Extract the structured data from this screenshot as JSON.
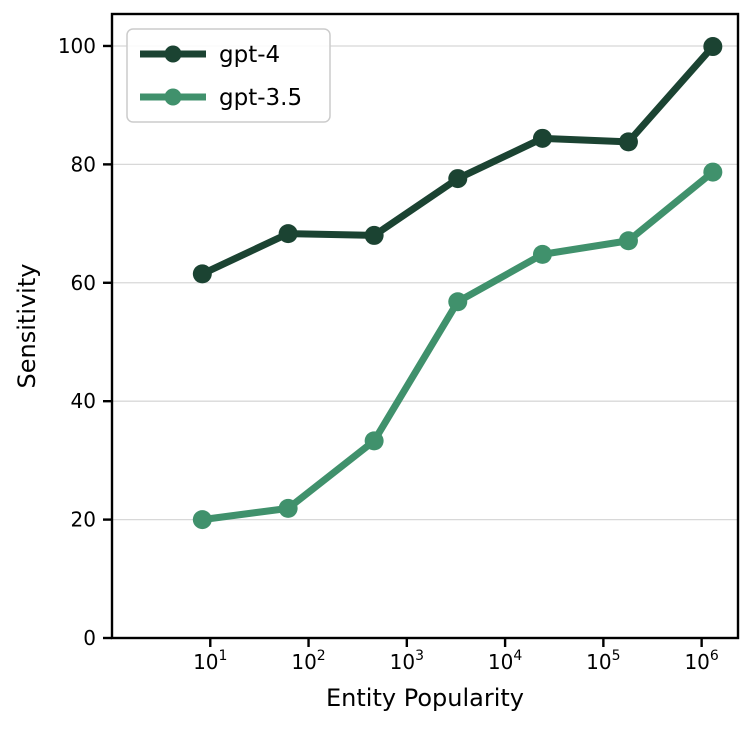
{
  "chart_data": {
    "type": "line",
    "title": "",
    "xlabel": "Entity Popularity",
    "ylabel": "Sensitivity",
    "x_scale": "log",
    "x_tick_base": "10",
    "x_tick_exponents": [
      1,
      2,
      3,
      4,
      5,
      6
    ],
    "y_ticks": [
      0,
      20,
      40,
      60,
      80,
      100
    ],
    "x_lim_log": [
      0.0,
      6.37
    ],
    "y_lim": [
      0,
      105.4
    ],
    "grid": "horizontal-only",
    "legend_position": "upper-left",
    "x": [
      8.3,
      62,
      465,
      3300,
      24000,
      180000,
      1300000
    ],
    "series": [
      {
        "name": "gpt-4",
        "color": "#1b4332",
        "values": [
          61.5,
          68.3,
          68.0,
          77.6,
          84.4,
          83.8,
          99.9
        ]
      },
      {
        "name": "gpt-3.5",
        "color": "#40916c",
        "values": [
          20.0,
          21.9,
          33.3,
          56.8,
          64.8,
          67.1,
          78.7
        ]
      }
    ],
    "colors": {
      "background": "#ffffff",
      "axis": "#000000",
      "grid": "#d8d8d8",
      "tick_label": "#000000",
      "legend_border": "#cccccc",
      "legend_fill": "#ffffff"
    }
  }
}
